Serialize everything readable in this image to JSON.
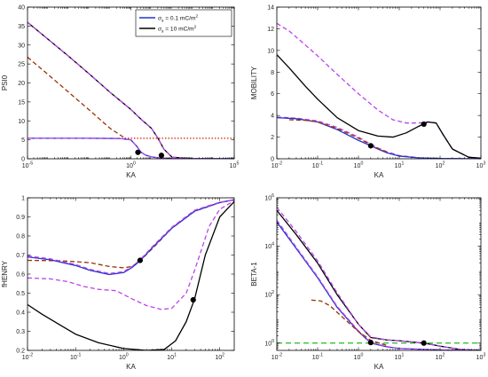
{
  "chart_data": [
    {
      "type": "line",
      "xlabel": "KA",
      "ylabel": "PSI0",
      "xscale": "log",
      "yscale": "linear",
      "xlim": [
        1e-05,
        100000
      ],
      "ylim": [
        0,
        40
      ],
      "xticks": [
        {
          "v": 1e-05,
          "base": "10",
          "exp": "-5"
        },
        {
          "v": 1,
          "base": "10",
          "exp": "0"
        },
        {
          "v": 100000,
          "base": "10",
          "exp": "5"
        }
      ],
      "yticks": [
        {
          "v": 0,
          "label": "0"
        },
        {
          "v": 5,
          "label": "5"
        },
        {
          "v": 10,
          "label": "10"
        },
        {
          "v": 15,
          "label": "15"
        },
        {
          "v": 20,
          "label": "20"
        },
        {
          "v": 25,
          "label": "25"
        },
        {
          "v": 30,
          "label": "30"
        },
        {
          "v": 35,
          "label": "35"
        },
        {
          "v": 40,
          "label": "40"
        }
      ],
      "legend": {
        "position": "top-right",
        "entries": [
          {
            "label_main": "σ",
            "label_sub": "s",
            "label_rest": " = 0.1 mC/m",
            "label_sup": "2",
            "color": "#2233cc"
          },
          {
            "label_main": "σ",
            "label_sub": "s",
            "label_rest": " = 10 mC/m",
            "label_sup": "2",
            "color": "#000000"
          }
        ]
      },
      "series": [
        {
          "color": "#000000",
          "dash": "",
          "x": [
            1e-05,
            0.0001,
            0.001,
            0.01,
            0.1,
            1,
            3,
            10,
            20,
            40,
            100,
            1000,
            100000
          ],
          "y": [
            36,
            31.5,
            27,
            22.3,
            17.5,
            13,
            10.5,
            8,
            5.5,
            2.5,
            0.4,
            0.05,
            0
          ]
        },
        {
          "color": "#bb44ee",
          "dash": "5,3",
          "x": [
            1e-05,
            0.0001,
            0.001,
            0.01,
            0.1,
            1,
            3,
            10,
            20,
            40,
            100,
            1000,
            100000
          ],
          "y": [
            36,
            31.5,
            27,
            22.3,
            17.5,
            13,
            10.5,
            8,
            5.5,
            2.5,
            0.4,
            0.05,
            0
          ]
        },
        {
          "color": "#2233cc",
          "dash": "",
          "x": [
            1e-05,
            0.01,
            0.3,
            1,
            2,
            3,
            5,
            10,
            30,
            100,
            1000,
            100000
          ],
          "y": [
            5.4,
            5.4,
            5.35,
            5,
            3.2,
            1.8,
            1,
            0.5,
            0.15,
            0.05,
            0.01,
            0
          ]
        },
        {
          "color": "#bb44ee",
          "dash": "5,3",
          "x": [
            1e-05,
            0.01,
            0.3,
            1,
            2,
            3,
            5,
            10,
            30,
            100,
            1000,
            100000
          ],
          "y": [
            5.4,
            5.4,
            5.35,
            5,
            3.2,
            1.8,
            1,
            0.5,
            0.15,
            0.05,
            0.01,
            0
          ]
        },
        {
          "color": "#993300",
          "dash": "5,3",
          "x": [
            1e-05,
            0.0001,
            0.001,
            0.01,
            0.1,
            0.5
          ],
          "y": [
            26.8,
            22.2,
            17.5,
            12.8,
            8,
            5.5
          ]
        },
        {
          "color": "#cc2200",
          "dash": "1.5,2",
          "x": [
            0.5,
            100000
          ],
          "y": [
            5.4,
            5.4
          ]
        }
      ],
      "markers": [
        {
          "x": 2.2,
          "y": 1.7
        },
        {
          "x": 30,
          "y": 0.9
        }
      ]
    },
    {
      "type": "line",
      "xlabel": "KA",
      "ylabel": "MOBILITY",
      "xscale": "log",
      "yscale": "linear",
      "xlim": [
        0.01,
        1000
      ],
      "ylim": [
        0,
        14
      ],
      "xticks": [
        {
          "v": 0.01,
          "base": "10",
          "exp": "-2"
        },
        {
          "v": 0.1,
          "base": "10",
          "exp": "-1"
        },
        {
          "v": 1,
          "base": "10",
          "exp": "0"
        },
        {
          "v": 10,
          "base": "10",
          "exp": "1"
        },
        {
          "v": 100,
          "base": "10",
          "exp": "2"
        },
        {
          "v": 1000,
          "base": "10",
          "exp": "3"
        }
      ],
      "yticks": [
        {
          "v": 0,
          "label": "0"
        },
        {
          "v": 2,
          "label": "2"
        },
        {
          "v": 4,
          "label": "4"
        },
        {
          "v": 6,
          "label": "6"
        },
        {
          "v": 8,
          "label": "8"
        },
        {
          "v": 10,
          "label": "10"
        },
        {
          "v": 12,
          "label": "12"
        },
        {
          "v": 14,
          "label": "14"
        }
      ],
      "series": [
        {
          "color": "#bb44ee",
          "dash": "5,3",
          "x": [
            0.01,
            0.02,
            0.05,
            0.1,
            0.3,
            1,
            3,
            7,
            15,
            30,
            50,
            80,
            120,
            200,
            500,
            1000
          ],
          "y": [
            12.5,
            11.8,
            10.5,
            9.5,
            7.8,
            6,
            4.5,
            3.6,
            3.3,
            3.3,
            3.4,
            3.3,
            2.2,
            0.9,
            0.15,
            0.05
          ]
        },
        {
          "color": "#000000",
          "dash": "",
          "x": [
            0.01,
            0.02,
            0.05,
            0.1,
            0.3,
            1,
            3,
            7,
            15,
            30,
            50,
            80,
            120,
            200,
            500,
            1000
          ],
          "y": [
            9.6,
            8.4,
            6.7,
            5.5,
            3.8,
            2.6,
            2.1,
            2.0,
            2.4,
            3.0,
            3.4,
            3.3,
            2.2,
            0.9,
            0.15,
            0.05
          ]
        },
        {
          "color": "#bb44ee",
          "dash": "5,3",
          "x": [
            0.01,
            0.03,
            0.1,
            0.3,
            1,
            2,
            3,
            5,
            10,
            30,
            100,
            1000
          ],
          "y": [
            3.85,
            3.75,
            3.5,
            2.9,
            2.0,
            1.35,
            1.0,
            0.65,
            0.3,
            0.1,
            0.03,
            0
          ]
        },
        {
          "color": "#2233cc",
          "dash": "",
          "x": [
            0.01,
            0.03,
            0.1,
            0.3,
            1,
            2,
            3,
            5,
            10,
            30,
            100,
            1000
          ],
          "y": [
            3.8,
            3.7,
            3.4,
            2.7,
            1.7,
            1.2,
            0.9,
            0.55,
            0.25,
            0.08,
            0.02,
            0
          ]
        },
        {
          "color": "#993300",
          "dash": "5,3",
          "x": [
            0.02,
            0.05,
            0.1,
            0.3,
            1,
            2,
            3,
            5
          ],
          "y": [
            3.6,
            3.55,
            3.4,
            2.8,
            1.9,
            1.3,
            0.95,
            0.6
          ]
        }
      ],
      "markers": [
        {
          "x": 2,
          "y": 1.2
        },
        {
          "x": 40,
          "y": 3.2
        }
      ]
    },
    {
      "type": "line",
      "xlabel": "KA",
      "ylabel": "fHENRY",
      "xscale": "log",
      "yscale": "linear",
      "xlim": [
        0.01,
        200
      ],
      "ylim": [
        0.2,
        1
      ],
      "xticks": [
        {
          "v": 0.01,
          "base": "10",
          "exp": "-2"
        },
        {
          "v": 0.1,
          "base": "10",
          "exp": "-1"
        },
        {
          "v": 1,
          "base": "10",
          "exp": "0"
        },
        {
          "v": 10,
          "base": "10",
          "exp": "1"
        },
        {
          "v": 100,
          "base": "10",
          "exp": "2"
        }
      ],
      "yticks": [
        {
          "v": 0.2,
          "label": "0.2"
        },
        {
          "v": 0.3,
          "label": "0.3"
        },
        {
          "v": 0.4,
          "label": "0.4"
        },
        {
          "v": 0.5,
          "label": "0.5"
        },
        {
          "v": 0.6,
          "label": "0.6"
        },
        {
          "v": 0.7,
          "label": "0.7"
        },
        {
          "v": 0.8,
          "label": "0.8"
        },
        {
          "v": 0.9,
          "label": "0.9"
        },
        {
          "v": 1,
          "label": "1"
        }
      ],
      "series": [
        {
          "color": "#993300",
          "dash": "5,3",
          "x": [
            0.01,
            0.05,
            0.2,
            0.5,
            1,
            1.5,
            2.2,
            4,
            10,
            30,
            100,
            200
          ],
          "y": [
            0.672,
            0.67,
            0.66,
            0.64,
            0.633,
            0.64,
            0.67,
            0.735,
            0.84,
            0.93,
            0.975,
            0.99
          ]
        },
        {
          "color": "#2233cc",
          "dash": "",
          "x": [
            0.01,
            0.03,
            0.1,
            0.2,
            0.5,
            1,
            1.5,
            2.2,
            4,
            10,
            30,
            100,
            200
          ],
          "y": [
            0.69,
            0.675,
            0.645,
            0.62,
            0.598,
            0.608,
            0.635,
            0.67,
            0.74,
            0.84,
            0.93,
            0.975,
            0.99
          ]
        },
        {
          "color": "#bb44ee",
          "dash": "5,3",
          "x": [
            0.01,
            0.03,
            0.1,
            0.2,
            0.5,
            1,
            1.5,
            2.2,
            4,
            10,
            30,
            100,
            200
          ],
          "y": [
            0.695,
            0.68,
            0.65,
            0.625,
            0.603,
            0.613,
            0.64,
            0.675,
            0.745,
            0.845,
            0.935,
            0.977,
            0.99
          ]
        },
        {
          "color": "#bb44ee",
          "dash": "5,3",
          "x": [
            0.01,
            0.03,
            0.07,
            0.15,
            0.3,
            0.7,
            1.5,
            3,
            6,
            10,
            20,
            30,
            60,
            100,
            200
          ],
          "y": [
            0.58,
            0.575,
            0.56,
            0.535,
            0.52,
            0.513,
            0.47,
            0.435,
            0.415,
            0.42,
            0.5,
            0.62,
            0.85,
            0.94,
            0.985
          ]
        },
        {
          "color": "#000000",
          "dash": "",
          "x": [
            0.01,
            0.02,
            0.05,
            0.1,
            0.3,
            1,
            3,
            7,
            12,
            20,
            30,
            50,
            100,
            200
          ],
          "y": [
            0.44,
            0.39,
            0.33,
            0.285,
            0.24,
            0.21,
            0.2,
            0.205,
            0.25,
            0.35,
            0.47,
            0.7,
            0.9,
            0.98
          ]
        }
      ],
      "markers": [
        {
          "x": 2.2,
          "y": 0.672
        },
        {
          "x": 28,
          "y": 0.465
        }
      ]
    },
    {
      "type": "line",
      "xlabel": "KA",
      "ylabel": "BETA-1",
      "xscale": "log",
      "yscale": "log",
      "xlim": [
        0.01,
        1000
      ],
      "ylim": [
        0.5,
        1000000
      ],
      "xticks": [
        {
          "v": 0.01,
          "base": "10",
          "exp": "-2"
        },
        {
          "v": 0.1,
          "base": "10",
          "exp": "-1"
        },
        {
          "v": 1,
          "base": "10",
          "exp": "0"
        },
        {
          "v": 10,
          "base": "10",
          "exp": "1"
        },
        {
          "v": 100,
          "base": "10",
          "exp": "2"
        },
        {
          "v": 1000,
          "base": "10",
          "exp": "3"
        }
      ],
      "yticks": [
        {
          "v": 1,
          "base": "10",
          "exp": "0"
        },
        {
          "v": 100,
          "base": "10",
          "exp": "2"
        },
        {
          "v": 10000,
          "base": "10",
          "exp": "4"
        },
        {
          "v": 1000000,
          "base": "10",
          "exp": "6"
        }
      ],
      "series": [
        {
          "color": "#22bb22",
          "dash": "6,4",
          "x": [
            0.01,
            1000
          ],
          "y": [
            1,
            1
          ]
        },
        {
          "color": "#000000",
          "dash": "",
          "x": [
            0.01,
            0.03,
            0.1,
            0.3,
            1,
            2,
            5,
            10,
            40,
            100,
            300,
            1000
          ],
          "y": [
            300000,
            30000,
            2000,
            100,
            6,
            1.7,
            1.35,
            1.25,
            1.0,
            0.75,
            0.55,
            0.5
          ]
        },
        {
          "color": "#bb44ee",
          "dash": "5,3",
          "x": [
            0.01,
            0.03,
            0.1,
            0.3,
            1,
            2,
            5,
            10,
            40,
            100,
            300,
            1000
          ],
          "y": [
            400000,
            40000,
            2500,
            120,
            6,
            1.8,
            1.35,
            1.25,
            1.0,
            0.75,
            0.55,
            0.5
          ]
        },
        {
          "color": "#2233cc",
          "dash": "",
          "x": [
            0.01,
            0.03,
            0.1,
            0.3,
            1,
            2,
            5,
            10,
            100,
            1000
          ],
          "y": [
            100000,
            8000,
            500,
            30,
            3,
            1.0,
            0.7,
            0.6,
            0.52,
            0.5
          ]
        },
        {
          "color": "#bb44ee",
          "dash": "5,3",
          "x": [
            0.01,
            0.03,
            0.1,
            0.3,
            1,
            2,
            5,
            10,
            100,
            1000
          ],
          "y": [
            120000,
            9000,
            550,
            33,
            3.2,
            1.05,
            0.72,
            0.6,
            0.52,
            0.5
          ]
        },
        {
          "color": "#993300",
          "dash": "5,3",
          "x": [
            0.07,
            0.12,
            0.2,
            0.4,
            1,
            2,
            5
          ],
          "y": [
            60,
            55,
            35,
            12,
            3,
            1.3,
            0.8
          ]
        }
      ],
      "markers": [
        {
          "x": 2,
          "y": 1.05
        },
        {
          "x": 40,
          "y": 1.0
        }
      ]
    }
  ]
}
